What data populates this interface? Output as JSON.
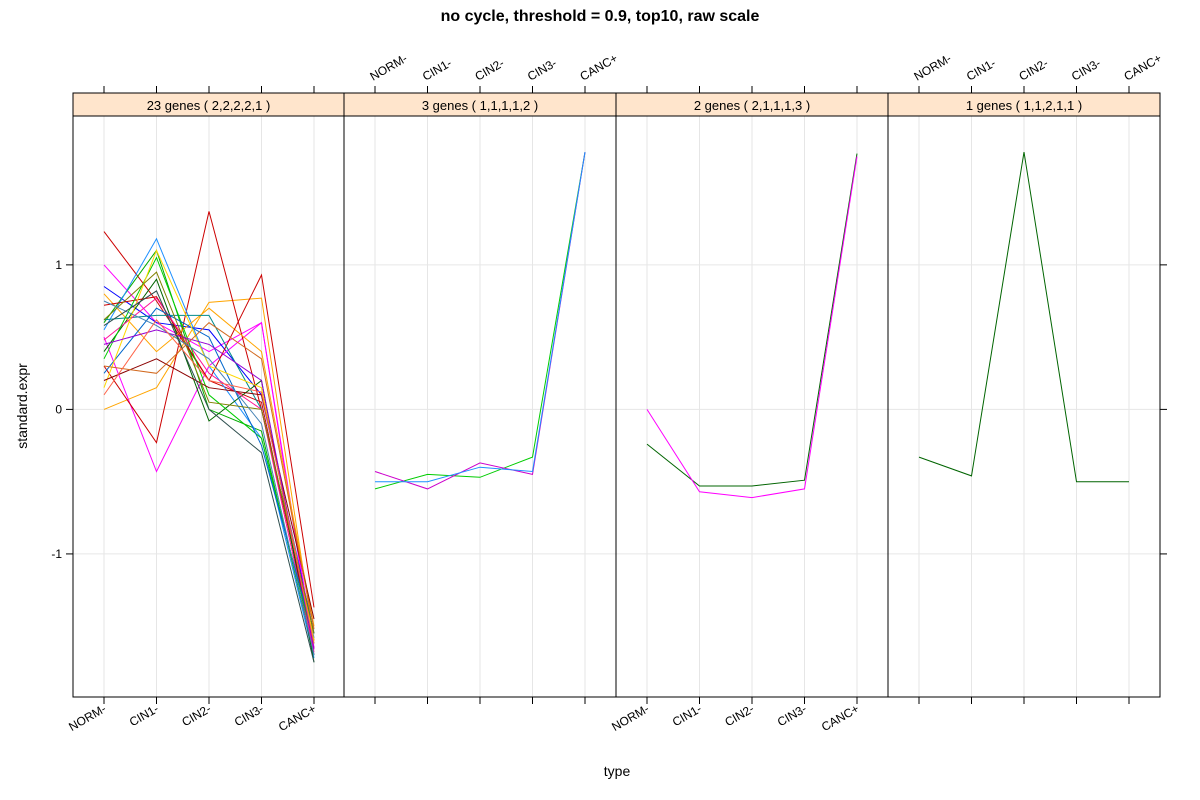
{
  "chart_data": {
    "type": "line",
    "title": "no cycle, threshold = 0.9, top10, raw scale",
    "xlabel": "type",
    "ylabel": "standard.expr",
    "categories": [
      "NORM-",
      "CIN1-",
      "CIN2-",
      "CIN3-",
      "CANC+"
    ],
    "y_ticks": [
      -1,
      0,
      1
    ],
    "y_tick_labels": [
      "-1",
      "0",
      "1"
    ],
    "ylim": [
      -1.99,
      2.03
    ],
    "grid": true,
    "strip_color": "#ffe5cc",
    "panels": [
      {
        "label": "23 genes ( 2,2,2,2,1 )",
        "series": [
          {
            "color": "#ff00ff",
            "values": [
              1.0,
              0.6,
              0.4,
              0.6,
              -1.7
            ]
          },
          {
            "color": "#cc0000",
            "values": [
              1.23,
              0.75,
              0.2,
              0.05,
              -1.65
            ]
          },
          {
            "color": "#ffa500",
            "values": [
              0.0,
              0.15,
              0.74,
              0.77,
              -1.6
            ]
          },
          {
            "color": "#0000ff",
            "values": [
              0.85,
              0.6,
              0.55,
              0.1,
              -1.55
            ]
          },
          {
            "color": "#00aa00",
            "values": [
              0.6,
              1.1,
              0.0,
              -0.15,
              -1.7
            ]
          },
          {
            "color": "#ff00ff",
            "values": [
              0.5,
              -0.43,
              0.3,
              0.6,
              -1.65
            ]
          },
          {
            "color": "#cc0000",
            "values": [
              0.3,
              -0.23,
              1.37,
              0.0,
              -1.6
            ]
          },
          {
            "color": "#1e90ff",
            "values": [
              0.55,
              1.18,
              0.3,
              -0.2,
              -1.72
            ]
          },
          {
            "color": "#006400",
            "values": [
              0.4,
              0.9,
              -0.08,
              0.2,
              -1.75
            ]
          },
          {
            "color": "#ffa500",
            "values": [
              0.8,
              0.4,
              0.7,
              0.4,
              -1.5
            ]
          },
          {
            "color": "#cc0000",
            "values": [
              0.72,
              0.78,
              0.2,
              0.93,
              -1.37
            ]
          },
          {
            "color": "#008b8b",
            "values": [
              0.62,
              0.65,
              0.65,
              0.0,
              -1.55
            ]
          },
          {
            "color": "#ff1493",
            "values": [
              0.48,
              0.77,
              0.25,
              0.0,
              -1.68
            ]
          },
          {
            "color": "#00cc00",
            "values": [
              0.35,
              1.05,
              0.1,
              -0.2,
              -1.62
            ]
          },
          {
            "color": "#0066cc",
            "values": [
              0.25,
              0.7,
              0.5,
              -0.25,
              -1.58
            ]
          },
          {
            "color": "#ffd700",
            "values": [
              0.15,
              1.1,
              0.3,
              0.15,
              -1.6
            ]
          },
          {
            "color": "#8b0000",
            "values": [
              0.2,
              0.35,
              0.15,
              0.1,
              -1.45
            ]
          },
          {
            "color": "#9400d3",
            "values": [
              0.45,
              0.55,
              0.45,
              0.2,
              -1.66
            ]
          },
          {
            "color": "#808000",
            "values": [
              0.62,
              0.95,
              0.05,
              0.0,
              -1.55
            ]
          },
          {
            "color": "#d2691e",
            "values": [
              0.3,
              0.25,
              0.6,
              0.35,
              -1.52
            ]
          },
          {
            "color": "#4682b4",
            "values": [
              0.75,
              0.58,
              0.35,
              -0.1,
              -1.7
            ]
          },
          {
            "color": "#2f4f4f",
            "values": [
              0.58,
              0.82,
              0.0,
              -0.3,
              -1.75
            ]
          },
          {
            "color": "#ff6347",
            "values": [
              0.1,
              0.62,
              0.2,
              0.12,
              -1.62
            ]
          }
        ]
      },
      {
        "label": "3 genes ( 1,1,1,1,2 )",
        "series": [
          {
            "color": "#00cc00",
            "values": [
              -0.55,
              -0.45,
              -0.47,
              -0.33,
              1.78
            ]
          },
          {
            "color": "#cc00cc",
            "values": [
              -0.43,
              -0.55,
              -0.37,
              -0.45,
              1.78
            ]
          },
          {
            "color": "#1e90ff",
            "values": [
              -0.5,
              -0.5,
              -0.4,
              -0.43,
              1.78
            ]
          }
        ]
      },
      {
        "label": "2 genes ( 2,1,1,1,3 )",
        "series": [
          {
            "color": "#006400",
            "values": [
              -0.24,
              -0.53,
              -0.53,
              -0.49,
              1.77
            ]
          },
          {
            "color": "#ff00ff",
            "values": [
              0.0,
              -0.57,
              -0.61,
              -0.55,
              1.75
            ]
          }
        ]
      },
      {
        "label": "1 genes ( 1,1,2,1,1 )",
        "series": [
          {
            "color": "#006400",
            "values": [
              -0.33,
              -0.46,
              1.78,
              -0.5,
              -0.5
            ]
          }
        ]
      }
    ]
  }
}
